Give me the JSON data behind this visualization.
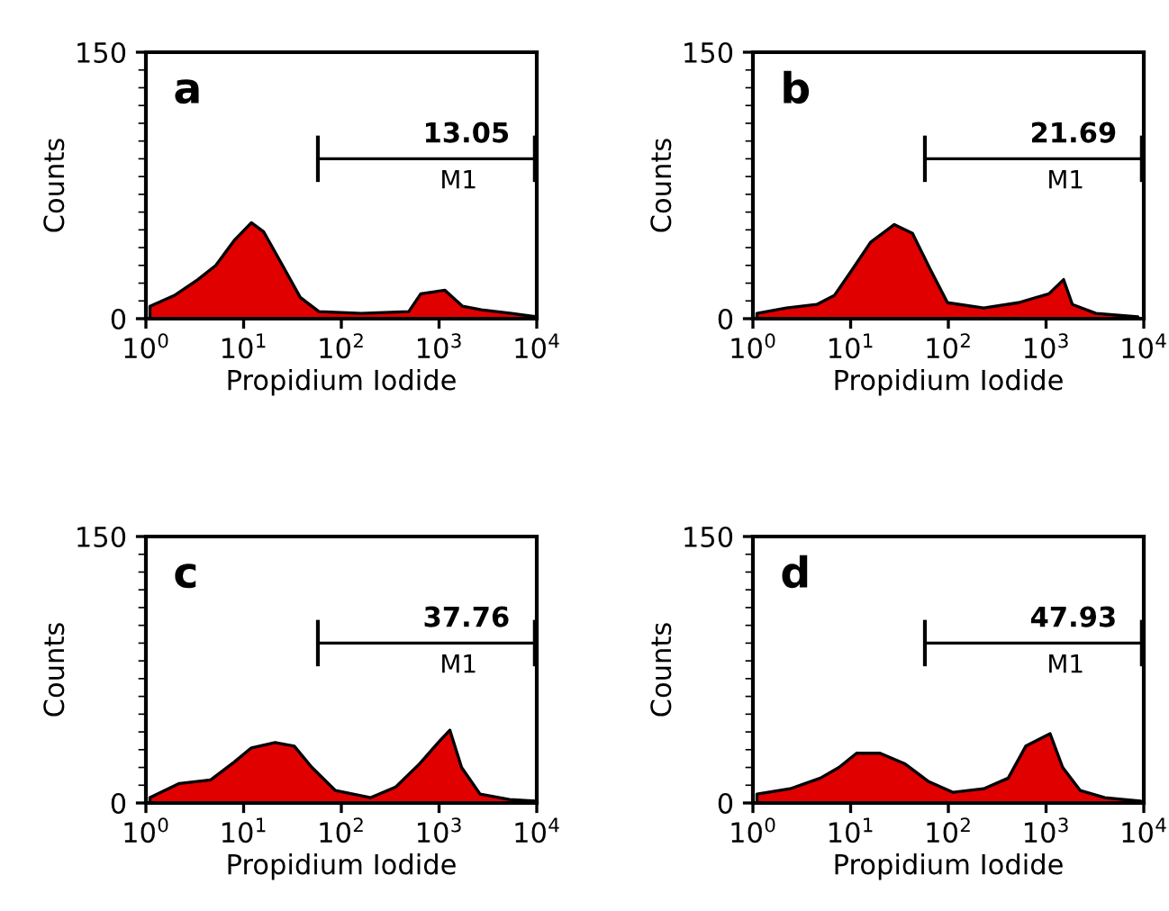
{
  "chart_data": [
    {
      "type": "area",
      "title": "a",
      "xlabel": "Propidium Iodide",
      "ylabel": "Counts",
      "log": "x",
      "xlim": [
        1,
        10000
      ],
      "ylim": [
        0,
        150
      ],
      "xticks": [
        {
          "value": 1,
          "label": "10$^{0}$"
        },
        {
          "value": 10,
          "label": "10$^{1}$"
        },
        {
          "value": 100,
          "label": "10$^{2}$"
        },
        {
          "value": 1000,
          "label": "10$^{3}$"
        },
        {
          "value": 10000,
          "label": "10$^{4}$"
        }
      ],
      "yticks": [
        0,
        150
      ],
      "series": [
        {
          "color": "#e00000",
          "x": [
            1.1,
            1.95,
            3.4,
            5.2,
            8,
            12,
            16,
            25,
            38,
            59,
            160,
            490,
            650,
            1150,
            1740,
            2700,
            5500,
            10000
          ],
          "values": [
            7,
            13,
            22,
            30,
            44,
            54,
            49,
            30,
            12,
            4,
            3,
            4,
            14,
            16,
            7,
            5,
            3,
            1
          ]
        }
      ],
      "annotations": [
        "13.05",
        "M1"
      ],
      "legend": false
    },
    {
      "type": "area",
      "title": "b",
      "xlabel": "Propidium Iodide",
      "ylabel": "Counts",
      "log": "x",
      "xlim": [
        1,
        10000
      ],
      "ylim": [
        0,
        150
      ],
      "xticks": [
        {
          "value": 1,
          "label": "10$^{0}$"
        },
        {
          "value": 10,
          "label": "10$^{1}$"
        },
        {
          "value": 100,
          "label": "10$^{2}$"
        },
        {
          "value": 1000,
          "label": "10$^{3}$"
        },
        {
          "value": 10000,
          "label": "10$^{4}$"
        }
      ],
      "yticks": [
        0,
        150
      ],
      "series": [
        {
          "color": "#e00000",
          "x": [
            1.1,
            2.2,
            4.5,
            6.8,
            10.5,
            16,
            28,
            43,
            65,
            98,
            230,
            520,
            1070,
            1510,
            1860,
            3240,
            8700
          ],
          "values": [
            3,
            6,
            8,
            13,
            28,
            43,
            53,
            48,
            28,
            9,
            6,
            9,
            14,
            22,
            8,
            3,
            1
          ]
        }
      ],
      "annotations": [
        "21.69",
        "M1"
      ],
      "legend": false
    },
    {
      "type": "area",
      "title": "c",
      "xlabel": "Propidium Iodide",
      "ylabel": "Counts",
      "log": "x",
      "xlim": [
        1,
        10000
      ],
      "ylim": [
        0,
        150
      ],
      "xticks": [
        {
          "value": 1,
          "label": "10$^{0}$"
        },
        {
          "value": 10,
          "label": "10$^{1}$"
        },
        {
          "value": 100,
          "label": "10$^{2}$"
        },
        {
          "value": 1000,
          "label": "10$^{3}$"
        },
        {
          "value": 10000,
          "label": "10$^{4}$"
        }
      ],
      "yticks": [
        0,
        150
      ],
      "series": [
        {
          "color": "#e00000",
          "x": [
            1.1,
            2.2,
            4.6,
            8,
            12,
            21,
            33,
            50,
            87,
            200,
            360,
            630,
            980,
            1290,
            1700,
            2630,
            5250,
            9800
          ],
          "values": [
            3,
            11,
            13,
            23,
            31,
            34,
            32,
            20,
            7,
            3,
            9,
            22,
            34,
            41,
            20,
            5,
            2,
            1
          ]
        }
      ],
      "annotations": [
        "37.76",
        "M1"
      ],
      "legend": false
    },
    {
      "type": "area",
      "title": "d",
      "xlabel": "Propidium Iodide",
      "ylabel": "Counts",
      "log": "x",
      "xlim": [
        1,
        10000
      ],
      "ylim": [
        0,
        150
      ],
      "xticks": [
        {
          "value": 1,
          "label": "10$^{0}$"
        },
        {
          "value": 10,
          "label": "10$^{1}$"
        },
        {
          "value": 100,
          "label": "10$^{2}$"
        },
        {
          "value": 1000,
          "label": "10$^{3}$"
        },
        {
          "value": 10000,
          "label": "10$^{4}$"
        }
      ],
      "yticks": [
        0,
        150
      ],
      "series": [
        {
          "color": "#e00000",
          "x": [
            1.1,
            2.4,
            4.9,
            7.6,
            11.5,
            20,
            36,
            63,
            112,
            230,
            410,
            620,
            1100,
            1480,
            2240,
            4000,
            9300
          ],
          "values": [
            5,
            8,
            14,
            20,
            28,
            28,
            22,
            12,
            6,
            8,
            14,
            32,
            39,
            20,
            7,
            3,
            1
          ]
        }
      ],
      "annotations": [
        "47.93",
        "M1"
      ],
      "legend": false
    }
  ]
}
